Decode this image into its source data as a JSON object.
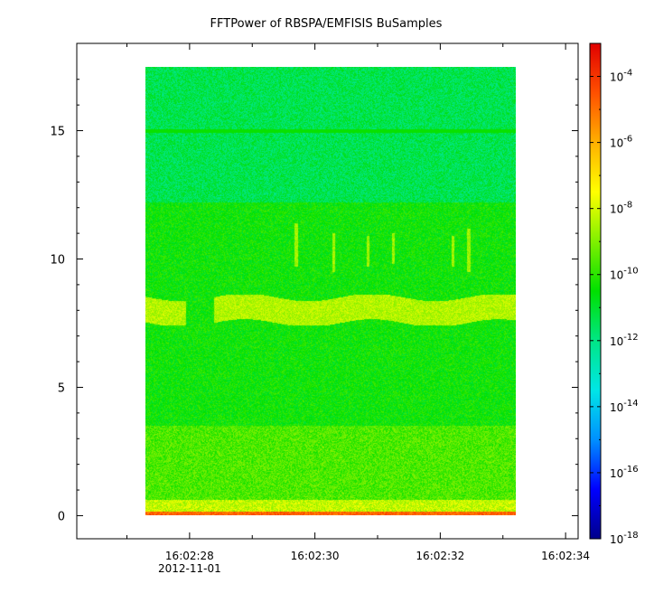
{
  "chart_data": {
    "type": "heatmap",
    "title": "FFTPower of RBSPA/EMFISIS  BuSamples",
    "xlabel": "",
    "ylabel": "",
    "date_label": "2012-11-01",
    "x_tick_labels": [
      "16:02:28",
      "16:02:30",
      "16:02:32",
      "16:02:34"
    ],
    "x_major_ticks_s": [
      28,
      30,
      32,
      34
    ],
    "x_minor_ticks_s": [
      27,
      29,
      31,
      33
    ],
    "xlim_s": [
      26.2,
      34.2
    ],
    "data_time_range_s": [
      27.3,
      33.2
    ],
    "y_tick_labels": [
      "0",
      "5",
      "10",
      "15"
    ],
    "y_ticks": [
      0,
      5,
      10,
      15
    ],
    "ylim": [
      -0.9,
      18.4
    ],
    "data_y_range": [
      0,
      17.5
    ],
    "colorbar": {
      "scale": "log",
      "range": [
        1e-18,
        0.001
      ],
      "tick_exponents": [
        -18,
        -16,
        -14,
        -12,
        -10,
        -8,
        -6,
        -4
      ],
      "colormap": [
        "#00008b",
        "#0000ff",
        "#0090ff",
        "#00e6e6",
        "#00e685",
        "#00e000",
        "#80f000",
        "#ffff00",
        "#ffb000",
        "#ff5000",
        "#e00000"
      ]
    },
    "spectrum": {
      "bands": [
        {
          "y0": 0.0,
          "y1": 0.15,
          "log_power": -4.8
        },
        {
          "y0": 0.15,
          "y1": 0.6,
          "log_power": -8.2
        },
        {
          "y0": 0.6,
          "y1": 3.5,
          "log_power": -9.6
        },
        {
          "y0": 3.5,
          "y1": 12.2,
          "log_power": -10.4
        },
        {
          "y0": 12.2,
          "y1": 17.5,
          "log_power": -11.4
        }
      ],
      "emission_line": {
        "y": 8.0,
        "log_power": -8.4
      },
      "constant_line": {
        "y": 15.0,
        "log_power": -10.4
      },
      "data_gap_s": [
        27.95,
        28.4
      ],
      "bursts": [
        {
          "t": 29.7,
          "y0": 9.7,
          "y1": 11.4
        },
        {
          "t": 30.3,
          "y0": 9.5,
          "y1": 11.0
        },
        {
          "t": 30.85,
          "y0": 9.7,
          "y1": 10.9
        },
        {
          "t": 31.25,
          "y0": 9.8,
          "y1": 11.0
        },
        {
          "t": 32.2,
          "y0": 9.7,
          "y1": 10.9
        },
        {
          "t": 32.45,
          "y0": 9.5,
          "y1": 11.2
        }
      ]
    }
  }
}
